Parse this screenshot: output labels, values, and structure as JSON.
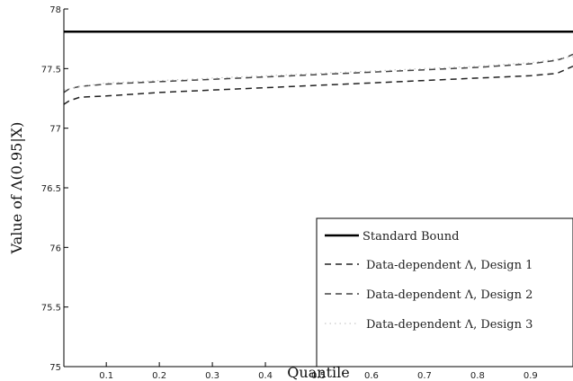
{
  "chart_data": {
    "type": "line",
    "xlabel": "Quantile",
    "ylabel": "Value of Λ(0.95|X)",
    "xlim": [
      0.02,
      0.98
    ],
    "ylim": [
      75,
      78
    ],
    "xticks": [
      "0.1",
      "0.2",
      "0.3",
      "0.4",
      "0.5",
      "0.6",
      "0.7",
      "0.8",
      "0.9"
    ],
    "xtick_values": [
      0.1,
      0.2,
      0.3,
      0.4,
      0.5,
      0.6,
      0.7,
      0.8,
      0.9
    ],
    "yticks": [
      "75",
      "75.5",
      "76",
      "76.5",
      "77",
      "77.5",
      "78"
    ],
    "ytick_values": [
      75,
      75.5,
      76,
      76.5,
      77,
      77.5,
      78
    ],
    "grid": false,
    "legend_position": "bottom-right",
    "series": [
      {
        "name": "Standard Bound",
        "style": "solid",
        "color": "#000000",
        "x": [
          0.02,
          0.98
        ],
        "y": [
          77.81,
          77.81
        ]
      },
      {
        "name": "Data-dependent Λ, Design 1",
        "style": "dashed",
        "color": "#222222",
        "x": [
          0.02,
          0.03,
          0.05,
          0.1,
          0.2,
          0.3,
          0.4,
          0.5,
          0.6,
          0.7,
          0.8,
          0.9,
          0.95,
          0.97,
          0.98
        ],
        "y": [
          77.2,
          77.23,
          77.26,
          77.27,
          77.3,
          77.32,
          77.34,
          77.36,
          77.38,
          77.4,
          77.42,
          77.44,
          77.46,
          77.5,
          77.52
        ]
      },
      {
        "name": "Data-dependent Λ, Design 2",
        "style": "dashed",
        "color": "#444444",
        "x": [
          0.02,
          0.03,
          0.05,
          0.1,
          0.2,
          0.3,
          0.4,
          0.5,
          0.6,
          0.7,
          0.8,
          0.9,
          0.95,
          0.97,
          0.98
        ],
        "y": [
          77.3,
          77.33,
          77.35,
          77.37,
          77.39,
          77.41,
          77.43,
          77.45,
          77.47,
          77.49,
          77.51,
          77.54,
          77.57,
          77.6,
          77.62
        ]
      },
      {
        "name": "Data-dependent Λ, Design 3",
        "style": "dotted",
        "color": "#bbbbbb",
        "x": [
          0.02,
          0.05,
          0.1,
          0.2,
          0.3,
          0.4,
          0.5,
          0.6,
          0.7,
          0.8,
          0.9,
          0.95,
          0.98
        ],
        "y": [
          77.32,
          77.35,
          77.38,
          77.4,
          77.42,
          77.44,
          77.46,
          77.48,
          77.5,
          77.52,
          77.55,
          77.58,
          77.6
        ]
      }
    ]
  }
}
